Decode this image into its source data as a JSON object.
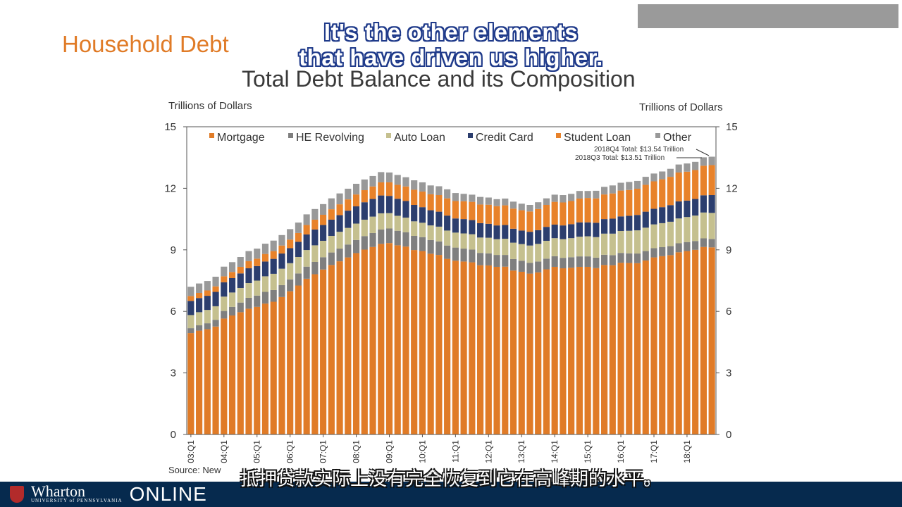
{
  "slide": {
    "title": "Household Debt",
    "top_box_text": "",
    "caption_line1": "It's the other elements",
    "caption_line2": "that have driven us higher.",
    "subtitle_zh": "抵押贷款实际上没有完全恢复到它在高峰期的水平。",
    "source": "Source: New",
    "brand": "Wharton",
    "brand_sub": "UNIVERSITY of PENNSYLVANIA",
    "brand_online": "ONLINE"
  },
  "chart_data": {
    "type": "bar",
    "stacked": true,
    "title": "Total Debt Balance and its Composition",
    "ylabel_left": "Trillions of Dollars",
    "ylabel_right": "Trillions of Dollars",
    "ylim": [
      0,
      15
    ],
    "yticks": [
      0,
      3,
      6,
      9,
      12,
      15
    ],
    "xtick_labels": [
      "03:Q1",
      "04:Q1",
      "05:Q1",
      "06:Q1",
      "07:Q1",
      "08:Q1",
      "09:Q1",
      "10:Q1",
      "11:Q1",
      "12:Q1",
      "13:Q1",
      "14:Q1",
      "15:Q1",
      "16:Q1",
      "17:Q1",
      "18:Q1"
    ],
    "legend_position": "top",
    "grid": false,
    "annotations": [
      "2018Q4 Total: $13.54 Trillion",
      "2018Q3 Total: $13.51 Trillion"
    ],
    "colors": {
      "Mortgage": "#e07b27",
      "HE Revolving": "#7f7f7f",
      "Auto Loan": "#c5c08f",
      "Credit Card": "#2c3e6e",
      "Student Loan": "#e8822a",
      "Other": "#999999"
    },
    "categories": [
      "03Q1",
      "03Q2",
      "03Q3",
      "03Q4",
      "04Q1",
      "04Q2",
      "04Q3",
      "04Q4",
      "05Q1",
      "05Q2",
      "05Q3",
      "05Q4",
      "06Q1",
      "06Q2",
      "06Q3",
      "06Q4",
      "07Q1",
      "07Q2",
      "07Q3",
      "07Q4",
      "08Q1",
      "08Q2",
      "08Q3",
      "08Q4",
      "09Q1",
      "09Q2",
      "09Q3",
      "09Q4",
      "10Q1",
      "10Q2",
      "10Q3",
      "10Q4",
      "11Q1",
      "11Q2",
      "11Q3",
      "11Q4",
      "12Q1",
      "12Q2",
      "12Q3",
      "12Q4",
      "13Q1",
      "13Q2",
      "13Q3",
      "13Q4",
      "14Q1",
      "14Q2",
      "14Q3",
      "14Q4",
      "15Q1",
      "15Q2",
      "15Q3",
      "15Q4",
      "16Q1",
      "16Q2",
      "16Q3",
      "16Q4",
      "17Q1",
      "17Q2",
      "17Q3",
      "17Q4",
      "18Q1",
      "18Q2",
      "18Q3",
      "18Q4"
    ],
    "series": [
      {
        "name": "Mortgage",
        "values": [
          4.94,
          5.06,
          5.13,
          5.26,
          5.65,
          5.8,
          5.96,
          6.13,
          6.22,
          6.38,
          6.47,
          6.7,
          6.98,
          7.26,
          7.59,
          7.81,
          8.04,
          8.26,
          8.44,
          8.63,
          8.84,
          9.01,
          9.14,
          9.29,
          9.33,
          9.22,
          9.16,
          8.99,
          8.94,
          8.81,
          8.75,
          8.56,
          8.47,
          8.43,
          8.39,
          8.25,
          8.24,
          8.17,
          8.18,
          7.99,
          7.93,
          7.84,
          7.9,
          8.05,
          8.17,
          8.1,
          8.13,
          8.17,
          8.17,
          8.11,
          8.26,
          8.25,
          8.37,
          8.36,
          8.35,
          8.48,
          8.63,
          8.69,
          8.74,
          8.88,
          8.94,
          9.0,
          9.14,
          9.12
        ]
      },
      {
        "name": "HE Revolving",
        "values": [
          0.24,
          0.26,
          0.29,
          0.33,
          0.37,
          0.42,
          0.47,
          0.53,
          0.55,
          0.57,
          0.57,
          0.58,
          0.58,
          0.59,
          0.59,
          0.6,
          0.6,
          0.61,
          0.62,
          0.63,
          0.64,
          0.66,
          0.68,
          0.7,
          0.71,
          0.71,
          0.7,
          0.69,
          0.68,
          0.67,
          0.66,
          0.65,
          0.64,
          0.63,
          0.62,
          0.6,
          0.59,
          0.58,
          0.57,
          0.56,
          0.54,
          0.53,
          0.53,
          0.52,
          0.52,
          0.51,
          0.51,
          0.51,
          0.51,
          0.51,
          0.5,
          0.49,
          0.48,
          0.47,
          0.47,
          0.46,
          0.45,
          0.44,
          0.44,
          0.44,
          0.44,
          0.43,
          0.42,
          0.41
        ]
      },
      {
        "name": "Auto Loan",
        "values": [
          0.64,
          0.64,
          0.65,
          0.66,
          0.7,
          0.7,
          0.71,
          0.72,
          0.73,
          0.76,
          0.79,
          0.8,
          0.79,
          0.8,
          0.81,
          0.81,
          0.8,
          0.81,
          0.82,
          0.81,
          0.8,
          0.8,
          0.8,
          0.79,
          0.75,
          0.73,
          0.71,
          0.71,
          0.7,
          0.71,
          0.72,
          0.73,
          0.73,
          0.74,
          0.75,
          0.75,
          0.76,
          0.77,
          0.79,
          0.8,
          0.81,
          0.84,
          0.86,
          0.87,
          0.88,
          0.91,
          0.93,
          0.96,
          0.98,
          1.0,
          1.03,
          1.05,
          1.07,
          1.1,
          1.13,
          1.14,
          1.16,
          1.17,
          1.19,
          1.21,
          1.22,
          1.24,
          1.26,
          1.27
        ]
      },
      {
        "name": "Credit Card",
        "values": [
          0.69,
          0.69,
          0.69,
          0.7,
          0.7,
          0.7,
          0.71,
          0.72,
          0.71,
          0.72,
          0.73,
          0.74,
          0.73,
          0.74,
          0.76,
          0.77,
          0.77,
          0.79,
          0.81,
          0.84,
          0.84,
          0.85,
          0.86,
          0.87,
          0.84,
          0.83,
          0.81,
          0.8,
          0.76,
          0.74,
          0.73,
          0.73,
          0.69,
          0.7,
          0.69,
          0.7,
          0.68,
          0.67,
          0.67,
          0.68,
          0.66,
          0.67,
          0.67,
          0.68,
          0.66,
          0.67,
          0.68,
          0.7,
          0.68,
          0.7,
          0.71,
          0.73,
          0.71,
          0.73,
          0.75,
          0.78,
          0.76,
          0.78,
          0.81,
          0.83,
          0.8,
          0.81,
          0.84,
          0.87
        ]
      },
      {
        "name": "Student Loan",
        "values": [
          0.24,
          0.25,
          0.26,
          0.27,
          0.29,
          0.3,
          0.32,
          0.35,
          0.36,
          0.37,
          0.38,
          0.39,
          0.42,
          0.43,
          0.46,
          0.48,
          0.5,
          0.51,
          0.53,
          0.55,
          0.58,
          0.59,
          0.61,
          0.64,
          0.66,
          0.68,
          0.71,
          0.74,
          0.76,
          0.78,
          0.81,
          0.84,
          0.85,
          0.87,
          0.89,
          0.91,
          0.93,
          0.94,
          0.96,
          0.98,
          0.99,
          0.99,
          1.03,
          1.07,
          1.11,
          1.12,
          1.13,
          1.16,
          1.19,
          1.19,
          1.2,
          1.23,
          1.26,
          1.26,
          1.28,
          1.31,
          1.34,
          1.36,
          1.38,
          1.41,
          1.41,
          1.41,
          1.44,
          1.46
        ]
      },
      {
        "name": "Other",
        "values": [
          0.45,
          0.46,
          0.46,
          0.47,
          0.47,
          0.48,
          0.48,
          0.49,
          0.49,
          0.5,
          0.51,
          0.51,
          0.51,
          0.51,
          0.52,
          0.52,
          0.52,
          0.53,
          0.53,
          0.52,
          0.52,
          0.52,
          0.51,
          0.5,
          0.48,
          0.48,
          0.45,
          0.46,
          0.45,
          0.43,
          0.43,
          0.44,
          0.39,
          0.36,
          0.35,
          0.37,
          0.35,
          0.34,
          0.33,
          0.34,
          0.32,
          0.32,
          0.33,
          0.32,
          0.35,
          0.36,
          0.35,
          0.37,
          0.34,
          0.37,
          0.37,
          0.39,
          0.38,
          0.39,
          0.38,
          0.39,
          0.38,
          0.38,
          0.39,
          0.39,
          0.4,
          0.4,
          0.41,
          0.41
        ]
      }
    ]
  }
}
